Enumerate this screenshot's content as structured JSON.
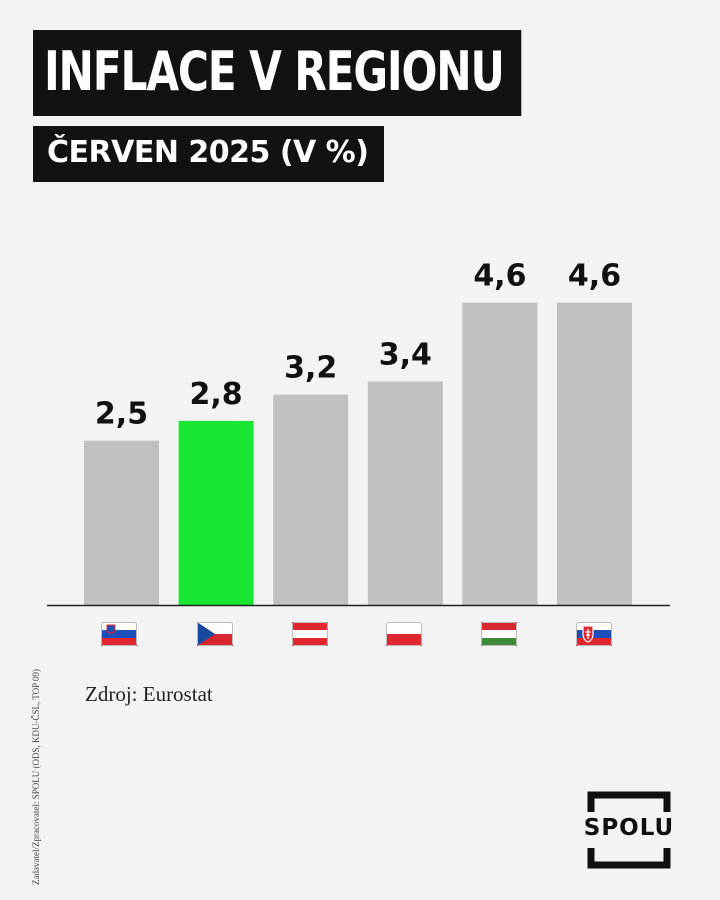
{
  "header": {
    "title": "INFLACE V REGIONU",
    "subtitle": "ČERVEN 2025 (V %)"
  },
  "chart_data": {
    "type": "bar",
    "title": "INFLACE V REGIONU",
    "subtitle": "ČERVEN 2025 (V %)",
    "categories": [
      "Slovenia",
      "Czechia",
      "Austria",
      "Poland",
      "Hungary",
      "Slovakia"
    ],
    "category_icons": [
      "slovenia-flag-icon",
      "czechia-flag-icon",
      "austria-flag-icon",
      "poland-flag-icon",
      "hungary-flag-icon",
      "slovakia-flag-icon"
    ],
    "values": [
      2.5,
      2.8,
      3.2,
      3.4,
      4.6,
      4.6
    ],
    "value_labels": [
      "2,5",
      "2,8",
      "3,2",
      "3,4",
      "4,6",
      "4,6"
    ],
    "bar_colors": [
      "#c0c0c0",
      "#19e631",
      "#c0c0c0",
      "#c0c0c0",
      "#c0c0c0",
      "#c0c0c0"
    ],
    "highlight": "Czechia",
    "ylim": [
      0,
      5.4
    ],
    "grid": false,
    "legend": "none"
  },
  "source": "Zdroj: Eurostat",
  "sidenote": "Zadavatel/Zpracovatel: SPOLU (ODS, KDU-ČSL, TOP 09)",
  "logo": {
    "text": "SPOLU"
  },
  "colors": {
    "background": "#f3f3f3",
    "title_bg": "#121212",
    "title_text": "#ffffff",
    "bar": "#c0c0c0",
    "highlight_bar": "#19e631",
    "axis": "#222222"
  }
}
